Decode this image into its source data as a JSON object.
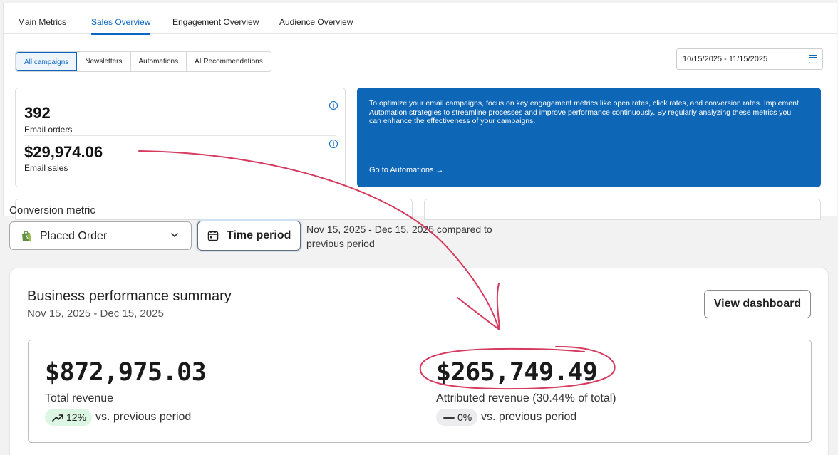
{
  "tabs": [
    {
      "label": "Main Metrics"
    },
    {
      "label": "Sales Overview"
    },
    {
      "label": "Engagement Overview"
    },
    {
      "label": "Audience Overview"
    }
  ],
  "segments": [
    {
      "label": "All campaigns"
    },
    {
      "label": "Newsletters"
    },
    {
      "label": "Automations"
    },
    {
      "label": "AI Recommendations"
    }
  ],
  "date_range": "10/15/2025 - 11/15/2025",
  "metrics": {
    "orders_value": "392",
    "orders_label": "Email orders",
    "sales_value": "$29,974.06",
    "sales_label": "Email sales"
  },
  "tip": {
    "text": "To optimize your email campaigns, focus on key engagement metrics like open rates, click rates, and conversion rates. Implement Automation strategies to streamline processes and improve performance continuously. By regularly analyzing these metrics you can enhance the effectiveness of your campaigns.",
    "link": "Go to Automations →"
  },
  "conversion": {
    "label": "Conversion metric",
    "selected": "Placed Order",
    "time_button": "Time period",
    "period_text": "Nov 15, 2025 - Dec 15, 2025 compared to previous period"
  },
  "summary": {
    "title": "Business performance summary",
    "date": "Nov 15, 2025 - Dec 15, 2025",
    "view_button": "View dashboard",
    "total_value": "$872,975.03",
    "total_label": "Total revenue",
    "total_change": "12%",
    "attributed_value": "$265,749.49",
    "attributed_label": "Attributed revenue (30.44% of total)",
    "attributed_change": "0%",
    "vs_text": "vs. previous period"
  },
  "colors": {
    "accent": "#0a66c2",
    "tip_background": "#0e66b6",
    "annotation": "#d63a5e",
    "badge_up": "#ddf6e3",
    "badge_flat": "#ececee"
  },
  "icons": [
    "info-icon",
    "calendar-icon",
    "shopify-bag-icon",
    "chevron-down-icon",
    "trend-up-icon",
    "dash-icon",
    "arrow-right-icon"
  ]
}
